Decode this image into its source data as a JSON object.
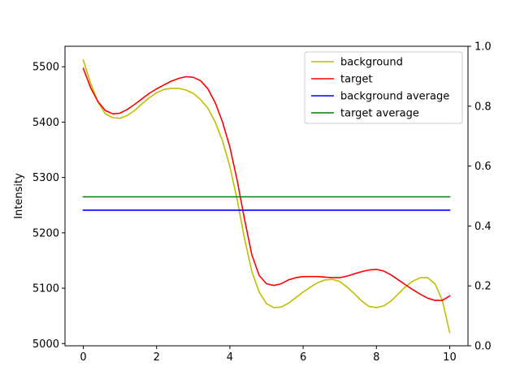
{
  "chart_data": {
    "type": "line",
    "title": "",
    "xlabel": "",
    "ylabel": "Intensity",
    "xlim": [
      -0.5,
      10.5
    ],
    "ylim": [
      4996,
      5537
    ],
    "y2lim": [
      0.0,
      1.0
    ],
    "xticks": [
      0,
      2,
      4,
      6,
      8,
      10
    ],
    "yticks": [
      5000,
      5100,
      5200,
      5300,
      5400,
      5500
    ],
    "y2ticks": [
      0.0,
      0.2,
      0.4,
      0.6,
      0.8,
      1.0
    ],
    "grid": false,
    "legend_position": "top-right",
    "series": [
      {
        "name": "background",
        "color": "#bfbf00",
        "x": [
          0,
          0.2,
          0.4,
          0.6,
          0.8,
          1.0,
          1.2,
          1.4,
          1.6,
          1.8,
          2.0,
          2.2,
          2.4,
          2.6,
          2.8,
          3.0,
          3.2,
          3.4,
          3.6,
          3.8,
          4.0,
          4.2,
          4.4,
          4.6,
          4.8,
          5.0,
          5.2,
          5.4,
          5.6,
          5.8,
          6.0,
          6.2,
          6.4,
          6.6,
          6.8,
          7.0,
          7.2,
          7.4,
          7.6,
          7.8,
          8.0,
          8.2,
          8.4,
          8.6,
          8.8,
          9.0,
          9.2,
          9.4,
          9.6,
          9.8,
          10.0
        ],
        "y": [
          5512,
          5470,
          5436,
          5415,
          5408,
          5407,
          5412,
          5421,
          5433,
          5444,
          5453,
          5459,
          5461,
          5461,
          5458,
          5452,
          5441,
          5425,
          5400,
          5366,
          5320,
          5260,
          5190,
          5130,
          5093,
          5072,
          5065,
          5066,
          5073,
          5083,
          5093,
          5102,
          5110,
          5115,
          5116,
          5112,
          5102,
          5090,
          5077,
          5067,
          5065,
          5068,
          5077,
          5090,
          5103,
          5113,
          5119,
          5119,
          5108,
          5078,
          5020
        ]
      },
      {
        "name": "target",
        "color": "#ff0000",
        "x": [
          0,
          0.2,
          0.4,
          0.6,
          0.8,
          1.0,
          1.2,
          1.4,
          1.6,
          1.8,
          2.0,
          2.2,
          2.4,
          2.6,
          2.8,
          3.0,
          3.2,
          3.4,
          3.6,
          3.8,
          4.0,
          4.2,
          4.4,
          4.6,
          4.8,
          5.0,
          5.2,
          5.4,
          5.6,
          5.8,
          6.0,
          6.2,
          6.4,
          6.6,
          6.8,
          7.0,
          7.2,
          7.4,
          7.6,
          7.8,
          8.0,
          8.2,
          8.4,
          8.6,
          8.8,
          9.0,
          9.2,
          9.4,
          9.6,
          9.8,
          10.0
        ],
        "y": [
          5497,
          5462,
          5437,
          5421,
          5415,
          5416,
          5423,
          5432,
          5442,
          5452,
          5460,
          5467,
          5474,
          5479,
          5482,
          5481,
          5475,
          5460,
          5435,
          5400,
          5355,
          5295,
          5225,
          5160,
          5123,
          5108,
          5105,
          5108,
          5115,
          5119,
          5121,
          5121,
          5121,
          5120,
          5119,
          5119,
          5122,
          5126,
          5130,
          5133,
          5134,
          5131,
          5124,
          5115,
          5106,
          5097,
          5089,
          5082,
          5078,
          5078,
          5086
        ]
      },
      {
        "name": "background average",
        "color": "#0000ff",
        "x": [
          0,
          10
        ],
        "y": [
          5241,
          5241
        ]
      },
      {
        "name": "target average",
        "color": "#008000",
        "x": [
          0,
          10
        ],
        "y": [
          5265,
          5265
        ]
      }
    ]
  }
}
